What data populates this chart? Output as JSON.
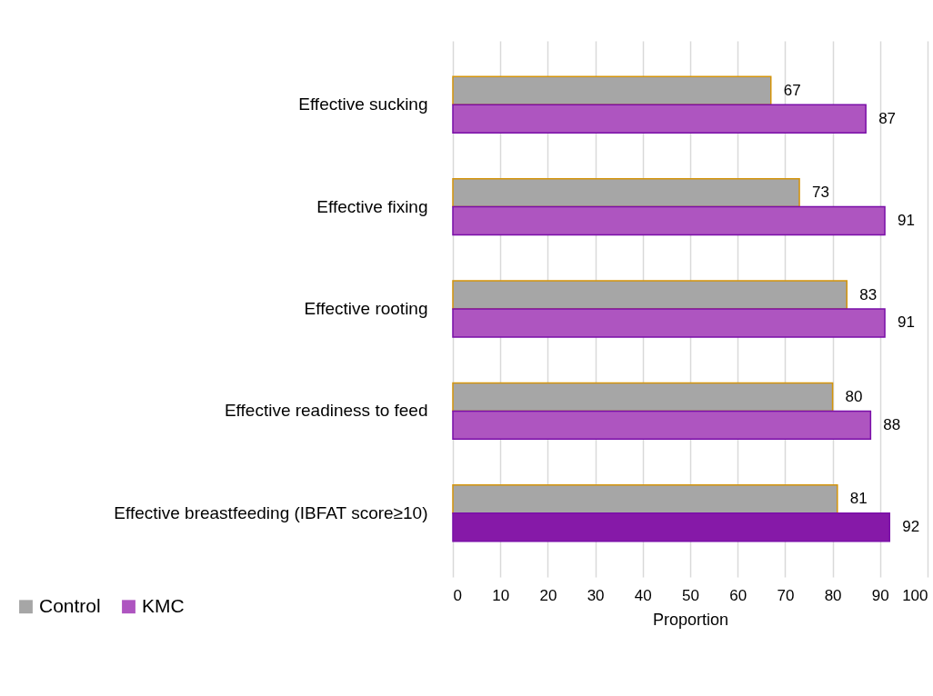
{
  "chart_data": {
    "type": "bar",
    "orientation": "horizontal",
    "xlabel": "Proportion",
    "categories": [
      "Effective sucking",
      "Effective fixing",
      "Effective rooting",
      "Effective readiness to feed",
      "Effective breastfeeding (IBFAT score≥10)"
    ],
    "series": [
      {
        "name": "Control",
        "color": "#a6a6a6",
        "values": [
          67,
          73,
          83,
          80,
          81
        ]
      },
      {
        "name": "KMC",
        "color": "#ae55c0",
        "colors": [
          "#ae55c0",
          "#ae55c0",
          "#ae55c0",
          "#ae55c0",
          "#8619a8"
        ],
        "values": [
          87,
          91,
          91,
          88,
          92
        ]
      }
    ],
    "xlim": [
      0,
      100
    ],
    "xticks": [
      0,
      10,
      20,
      30,
      40,
      50,
      60,
      70,
      80,
      90,
      100
    ],
    "grid": "x",
    "legend": "bottom left",
    "data_labels": true
  }
}
